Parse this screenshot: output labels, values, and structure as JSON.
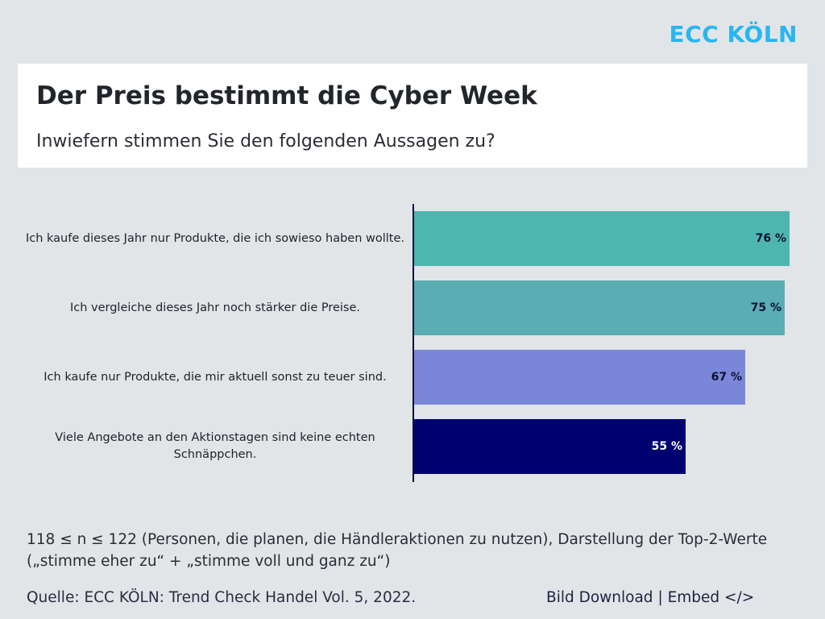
{
  "brand": {
    "logo_text": "ECC KÖLN",
    "color": "#29b6f0"
  },
  "header": {
    "title": "Der Preis bestimmt die Cyber Week",
    "subtitle": "Inwiefern stimmen Sie den folgenden Aussagen zu?"
  },
  "chart_data": {
    "type": "bar",
    "orientation": "horizontal",
    "title": "Der Preis bestimmt die Cyber Week",
    "subtitle": "Inwiefern stimmen Sie den folgenden Aussagen zu?",
    "xlabel": "",
    "ylabel": "",
    "xlim": [
      0,
      76
    ],
    "grid": false,
    "unit": "%",
    "categories": [
      "Ich kaufe dieses Jahr nur Produkte, die ich sowieso haben wollte.",
      "Ich vergleiche dieses Jahr noch stärker die Preise.",
      "Ich kaufe nur Produkte, die mir aktuell sonst zu teuer sind.",
      "Viele Angebote an den Aktionstagen sind keine echten Schnäppchen."
    ],
    "values": [
      76,
      75,
      67,
      55
    ],
    "data_labels": [
      "76 %",
      "75 %",
      "67 %",
      "55 %"
    ],
    "colors": [
      "#4db6ae",
      "#59adb3",
      "#7a87d8",
      "#000070"
    ],
    "label_colors": [
      "#0f1133",
      "#0f1133",
      "#0f1133",
      "#ffffff"
    ]
  },
  "footer": {
    "note": "118 ≤ n ≤ 122 (Personen, die planen, die Händleraktionen zu nutzen), Darstellung der Top-2-Werte („stimme eher zu“ + „stimme voll und ganz zu“)",
    "source": "Quelle: ECC KÖLN: Trend Check Handel Vol. 5, 2022.",
    "download_label": "Bild Download",
    "separator": "|",
    "embed_label": "Embed </>"
  }
}
